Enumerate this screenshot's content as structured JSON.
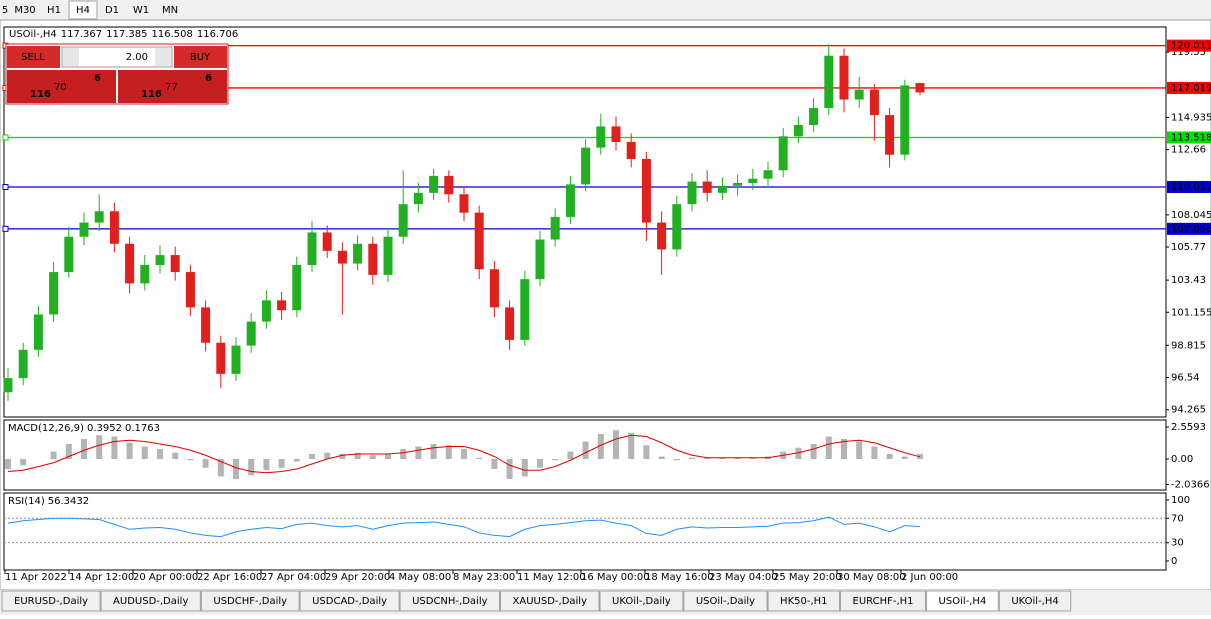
{
  "toolbar": {
    "timeframes": [
      "5",
      "M30",
      "H1",
      "H4",
      "D1",
      "W1",
      "MN"
    ],
    "active": "H4"
  },
  "trade_panel": {
    "sell": "SELL",
    "buy": "BUY",
    "lot": "2.00",
    "sell_price": {
      "big_figure": "116",
      "pips": "70",
      "fraction": "6"
    },
    "buy_price": {
      "big_figure": "116",
      "pips": "77",
      "fraction": "6"
    }
  },
  "chart_data": [
    {
      "type": "candlestick",
      "symbol": "USOil-,H4",
      "open": [
        95.5,
        96.5,
        98.5,
        101,
        104,
        106.5,
        107.5,
        108.3,
        106,
        103.2,
        104.5,
        105.2,
        104,
        101.5,
        99,
        96.8,
        98.8,
        100.5,
        102,
        101.3,
        104.5,
        106.8,
        105.5,
        104.6,
        106,
        103.8,
        106.5,
        108.8,
        109.6,
        110.8,
        109.5,
        108.2,
        104.2,
        101.5,
        99.2,
        103.5,
        106.3,
        107.9,
        110.2,
        112.8,
        114.3,
        113.2,
        112,
        107.5,
        105.6,
        108.8,
        110.4,
        109.6,
        110.1,
        110.3,
        110.6,
        111.2,
        113.6,
        114.4,
        115.6,
        119.3,
        116.2,
        116.9,
        115.1,
        112.3,
        117.367
      ],
      "high": [
        97.2,
        99.0,
        101.6,
        104.7,
        107.2,
        108.2,
        109.5,
        108.9,
        106.5,
        105.2,
        105.9,
        105.8,
        104.5,
        102.0,
        99.5,
        99.4,
        101.1,
        102.7,
        102.6,
        105.1,
        107.6,
        107.3,
        106.1,
        106.6,
        106.5,
        107.1,
        111.2,
        110.3,
        111.3,
        111.2,
        110.0,
        108.7,
        104.8,
        102.0,
        104.1,
        106.9,
        108.5,
        110.8,
        113.4,
        115.2,
        115.0,
        113.8,
        112.5,
        108.3,
        109.4,
        111.0,
        111.2,
        110.7,
        110.9,
        111.3,
        111.8,
        114.2,
        115.0,
        116.3,
        120.1,
        119.8,
        117.8,
        117.3,
        115.6,
        117.6,
        117.385
      ],
      "low": [
        94.9,
        96.0,
        98.0,
        100.5,
        103.6,
        105.9,
        106.9,
        105.4,
        102.5,
        102.7,
        103.9,
        103.4,
        100.9,
        98.4,
        95.8,
        96.3,
        98.3,
        100.0,
        100.6,
        100.8,
        104.0,
        105.0,
        101.0,
        104.1,
        103.1,
        103.3,
        106.0,
        108.2,
        109.1,
        108.9,
        107.6,
        103.5,
        100.8,
        98.5,
        98.8,
        103.0,
        105.8,
        107.4,
        109.7,
        112.3,
        112.6,
        111.4,
        106.2,
        103.8,
        105.1,
        108.3,
        109.0,
        109.1,
        109.4,
        109.8,
        110.1,
        110.7,
        113.1,
        113.9,
        115.1,
        115.3,
        115.6,
        113.3,
        111.4,
        111.9,
        116.508
      ],
      "close": [
        96.5,
        98.5,
        101,
        104,
        106.5,
        107.5,
        108.3,
        106,
        103.2,
        104.5,
        105.2,
        104,
        101.5,
        99,
        96.8,
        98.8,
        100.5,
        102,
        101.3,
        104.5,
        106.8,
        105.5,
        104.6,
        106,
        103.8,
        106.5,
        108.8,
        109.6,
        110.8,
        109.5,
        108.2,
        104.2,
        101.5,
        99.2,
        103.5,
        106.3,
        107.9,
        110.2,
        112.8,
        114.3,
        113.2,
        112,
        107.5,
        105.6,
        108.8,
        110.4,
        109.6,
        110.1,
        110.3,
        110.6,
        111.2,
        113.6,
        114.4,
        115.6,
        119.3,
        116.2,
        116.9,
        115.1,
        112.3,
        117.2,
        116.706
      ],
      "up_color": "#22b022",
      "down_color": "#e0201c",
      "ylim": [
        93.75,
        121.33
      ],
      "yticks": [
        119.55,
        114.935,
        112.66,
        108.045,
        105.77,
        103.43,
        101.155,
        98.815,
        96.54,
        94.265
      ],
      "levels": [
        {
          "value": 120.011,
          "color": "#ff0000"
        },
        {
          "value": 117.019,
          "color": "#ff0000"
        },
        {
          "value": 113.518,
          "color": "#00e000"
        },
        {
          "value": 110.017,
          "color": "#0000cc"
        },
        {
          "value": 107.056,
          "color": "#0000cc"
        }
      ],
      "x_labels": [
        "11 Apr 2022",
        "14 Apr 12:00",
        "20 Apr 00:00",
        "22 Apr 16:00",
        "27 Apr 04:00",
        "29 Apr 20:00",
        "4 May 08:00",
        "8 May 23:00",
        "11 May 12:00",
        "16 May 00:00",
        "18 May 16:00",
        "23 May 04:00",
        "25 May 20:00",
        "30 May 08:00",
        "2 Jun 00:00"
      ]
    },
    {
      "type": "macd",
      "name": "MACD(12,26,9)",
      "histogram": [
        -0.8,
        -0.5,
        0,
        0.6,
        1.2,
        1.6,
        1.9,
        1.8,
        1.3,
        1.0,
        0.8,
        0.5,
        -0.1,
        -0.7,
        -1.4,
        -1.6,
        -1.3,
        -0.9,
        -0.7,
        -0.2,
        0.4,
        0.5,
        0.4,
        0.5,
        0.3,
        0.4,
        0.8,
        1.0,
        1.2,
        1.1,
        0.8,
        0.1,
        -0.8,
        -1.6,
        -1.4,
        -0.7,
        -0.1,
        0.6,
        1.4,
        2.0,
        2.3,
        2.1,
        1.1,
        0.2,
        -0.1,
        0.1,
        0.1,
        0.1,
        0.1,
        0.1,
        0.2,
        0.6,
        0.9,
        1.2,
        1.8,
        1.6,
        1.4,
        1.0,
        0.4,
        0.2,
        0.3952
      ],
      "signal": [
        -1.0,
        -0.9,
        -0.6,
        -0.3,
        0.2,
        0.7,
        1.1,
        1.4,
        1.5,
        1.4,
        1.2,
        1.0,
        0.7,
        0.3,
        -0.2,
        -0.7,
        -1.0,
        -1.1,
        -1.0,
        -0.8,
        -0.4,
        0,
        0.3,
        0.4,
        0.4,
        0.4,
        0.5,
        0.7,
        0.9,
        1.0,
        1.0,
        0.7,
        0.2,
        -0.5,
        -0.9,
        -0.9,
        -0.6,
        -0.1,
        0.5,
        1.1,
        1.6,
        1.9,
        1.8,
        1.3,
        0.7,
        0.3,
        0.1,
        0.1,
        0.1,
        0.1,
        0.1,
        0.3,
        0.5,
        0.8,
        1.2,
        1.4,
        1.5,
        1.3,
        0.9,
        0.5,
        0.1763
      ],
      "histogram_color": "#b4b4b4",
      "signal_color": "#e00000",
      "ylim": [
        -2.48,
        3.12
      ],
      "yticks": [
        2.5593,
        {
          "value": 0,
          "label": "0.00"
        },
        -2.0366
      ]
    },
    {
      "type": "line",
      "name": "RSI(14)",
      "values": [
        62,
        66,
        68,
        70,
        70,
        69,
        68,
        60,
        52,
        54,
        55,
        52,
        46,
        42,
        40,
        48,
        52,
        55,
        53,
        60,
        62,
        58,
        56,
        58,
        52,
        58,
        62,
        63,
        64,
        60,
        56,
        46,
        42,
        40,
        52,
        58,
        60,
        63,
        66,
        67,
        62,
        58,
        45,
        42,
        52,
        56,
        54,
        55,
        55,
        56,
        57,
        62,
        63,
        66,
        72,
        60,
        62,
        56,
        48,
        58,
        56.3432
      ],
      "color": "#1e90ff",
      "ylim": [
        -14.8,
        111.5
      ],
      "yticks": [
        100,
        70,
        30,
        0
      ]
    }
  ],
  "tabs": [
    "EURUSD-,Daily",
    "AUDUSD-,Daily",
    "USDCHF-,Daily",
    "USDCAD-,Daily",
    "USDCNH-,Daily",
    "XAUUSD-,Daily",
    "UKOil-,Daily",
    "USOil-,Daily",
    "HK50-,H1",
    "EURCHF-,H1",
    "USOil-,H4",
    "UKOil-,H4"
  ],
  "active_tab": "USOil-,H4"
}
